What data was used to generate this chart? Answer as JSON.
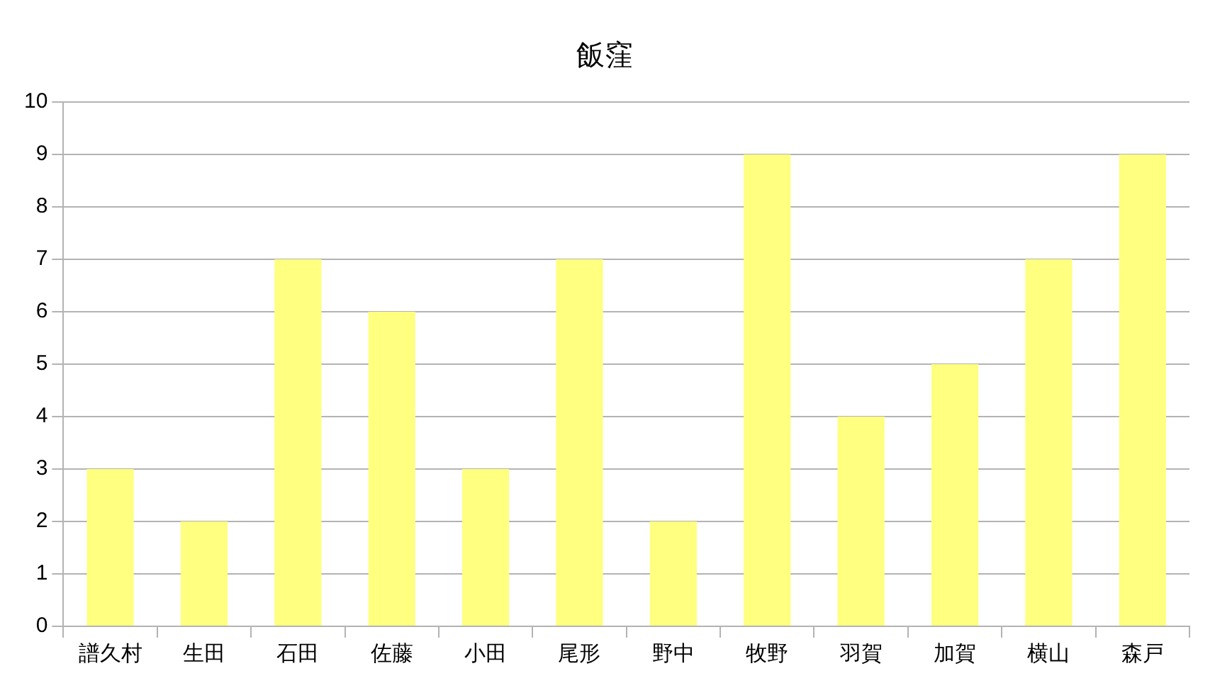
{
  "chart_data": {
    "type": "bar",
    "title": "飯窪",
    "categories": [
      "譜久村",
      "生田",
      "石田",
      "佐藤",
      "小田",
      "尾形",
      "野中",
      "牧野",
      "羽賀",
      "加賀",
      "横山",
      "森戸"
    ],
    "values": [
      3,
      2,
      7,
      6,
      3,
      7,
      2,
      9,
      4,
      5,
      7,
      9
    ],
    "color": "#ffff80",
    "ylim": [
      0,
      10
    ],
    "yticks": [
      0,
      1,
      2,
      3,
      4,
      5,
      6,
      7,
      8,
      9,
      10
    ],
    "grid": "y",
    "legend": false
  }
}
